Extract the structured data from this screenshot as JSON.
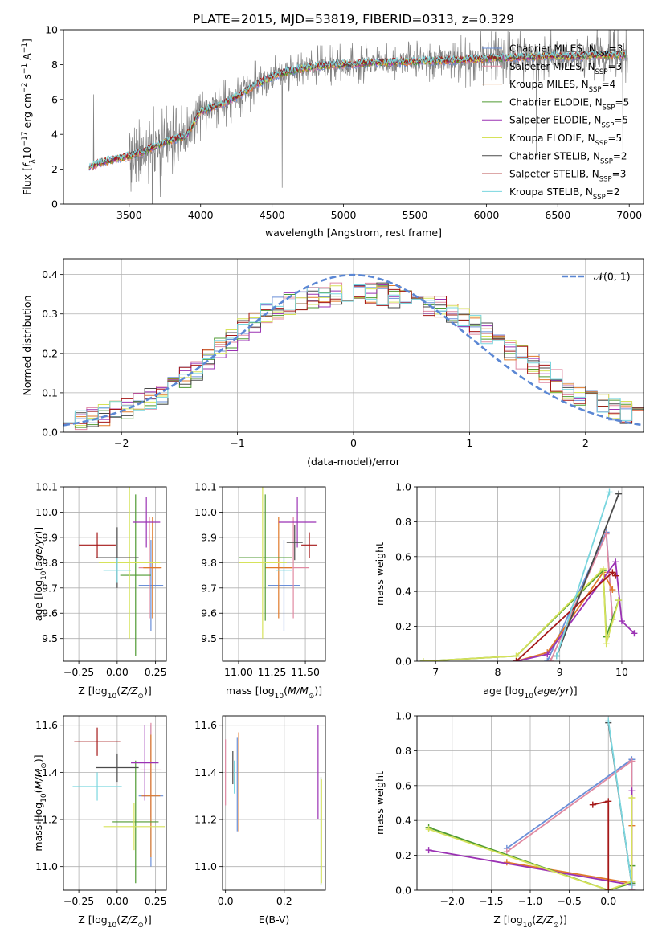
{
  "figure_title": "PLATE=2015, MJD=53819, FIBERID=0313, z=0.329",
  "colors": {
    "Chabrier MILES": "#6a8fd8",
    "Salpeter MILES": "#e08aa2",
    "Kroupa MILES": "#e07a2a",
    "Chabrier ELODIE": "#4f9a32",
    "Salpeter ELODIE": "#9b32b4",
    "Kroupa ELODIE": "#d6e25a",
    "Chabrier STELIB": "#4a4a4a",
    "Salpeter STELIB": "#a51818",
    "Kroupa STELIB": "#7ad6df",
    "gaussian": "#5b87d4",
    "gray_spectrum": "#808080"
  },
  "chart_data": [
    {
      "id": "spectrum",
      "type": "line",
      "title": "PLATE=2015, MJD=53819, FIBERID=0313, z=0.329",
      "xlabel": "wavelength [Angstrom, rest frame]",
      "ylabel": "Flux [f_λ 10⁻¹⁷ erg cm⁻² s⁻¹ A⁻¹]",
      "xlim": [
        3040,
        7100
      ],
      "ylim": [
        0,
        10
      ],
      "xticks": [
        3500,
        4000,
        4500,
        5000,
        5500,
        6000,
        6500,
        7000
      ],
      "yticks": [
        0,
        2,
        4,
        6,
        8,
        10
      ],
      "grid": false,
      "legend": "upper-right",
      "series": [
        {
          "name": "Chabrier MILES, N_SSP=3",
          "label": [
            "Chabrier MILES, N",
            "SSP",
            "=3"
          ],
          "key": "Chabrier MILES"
        },
        {
          "name": "Salpeter MILES, N_SSP=3",
          "label": [
            "Salpeter MILES, N",
            "SSP",
            "=3"
          ],
          "key": "Salpeter MILES"
        },
        {
          "name": "Kroupa MILES, N_SSP=4",
          "label": [
            "Kroupa MILES, N",
            "SSP",
            "=4"
          ],
          "key": "Kroupa MILES"
        },
        {
          "name": "Chabrier ELODIE, N_SSP=5",
          "label": [
            "Chabrier ELODIE, N",
            "SSP",
            "=5"
          ],
          "key": "Chabrier ELODIE"
        },
        {
          "name": "Salpeter ELODIE, N_SSP=5",
          "label": [
            "Salpeter ELODIE, N",
            "SSP",
            "=5"
          ],
          "key": "Salpeter ELODIE"
        },
        {
          "name": "Kroupa ELODIE, N_SSP=5",
          "label": [
            "Kroupa ELODIE, N",
            "SSP",
            "=5"
          ],
          "key": "Kroupa ELODIE"
        },
        {
          "name": "Chabrier STELIB, N_SSP=2",
          "label": [
            "Chabrier STELIB, N",
            "SSP",
            "=2"
          ],
          "key": "Chabrier STELIB"
        },
        {
          "name": "Salpeter STELIB, N_SSP=3",
          "label": [
            "Salpeter STELIB, N",
            "SSP",
            "=3"
          ],
          "key": "Salpeter STELIB"
        },
        {
          "name": "Kroupa STELIB, N_SSP=2",
          "label": [
            "Kroupa STELIB, N",
            "SSP",
            "=2"
          ],
          "key": "Kroupa STELIB"
        }
      ],
      "continuum": {
        "x": [
          3220,
          3300,
          3400,
          3500,
          3600,
          3700,
          3800,
          3900,
          3950,
          4000,
          4100,
          4200,
          4300,
          4400,
          4500,
          4600,
          4800,
          5000,
          5200,
          5400,
          5600,
          5800,
          6000,
          6200,
          6400,
          6600,
          6800,
          6990
        ],
        "y": [
          2.1,
          2.4,
          2.55,
          2.75,
          3.0,
          3.4,
          3.7,
          3.9,
          4.6,
          5.3,
          5.6,
          5.9,
          6.4,
          6.9,
          7.3,
          7.6,
          7.9,
          8.0,
          8.1,
          8.15,
          8.2,
          8.25,
          8.35,
          8.4,
          8.5,
          8.45,
          8.55,
          8.55
        ]
      }
    },
    {
      "id": "residuals",
      "type": "histogram",
      "xlabel": "(data-model)/error",
      "ylabel": "Normed distribution",
      "xlim": [
        -2.5,
        2.5
      ],
      "ylim": [
        0,
        0.44
      ],
      "xticks": [
        -2,
        -1,
        0,
        1,
        2
      ],
      "xtick_labels": [
        "−2",
        "−1",
        "0",
        "1",
        "2"
      ],
      "yticks": [
        0.0,
        0.1,
        0.2,
        0.3,
        0.4
      ],
      "grid": true,
      "legend": "upper-right",
      "gaussian": {
        "name": "𝒩(0, 1)",
        "mean": 0,
        "sigma": 1
      },
      "bin_edges": [
        -2.5,
        -2.4,
        -2.3,
        -2.2,
        -2.1,
        -2.0,
        -1.9,
        -1.8,
        -1.7,
        -1.6,
        -1.5,
        -1.4,
        -1.3,
        -1.2,
        -1.1,
        -1.0,
        -0.9,
        -0.8,
        -0.7,
        -0.6,
        -0.5,
        -0.4,
        -0.3,
        -0.2,
        -0.1,
        0.0,
        0.1,
        0.2,
        0.3,
        0.4,
        0.5,
        0.6,
        0.7,
        0.8,
        0.9,
        1.0,
        1.1,
        1.2,
        1.3,
        1.4,
        1.5,
        1.6,
        1.7,
        1.8,
        1.9,
        2.0,
        2.1,
        2.2,
        2.3,
        2.4,
        2.5
      ],
      "envelope": [
        0.03,
        0.035,
        0.04,
        0.045,
        0.05,
        0.06,
        0.07,
        0.085,
        0.1,
        0.12,
        0.14,
        0.16,
        0.185,
        0.21,
        0.235,
        0.26,
        0.28,
        0.3,
        0.315,
        0.325,
        0.335,
        0.34,
        0.345,
        0.35,
        0.35,
        0.35,
        0.35,
        0.35,
        0.345,
        0.34,
        0.335,
        0.325,
        0.315,
        0.3,
        0.285,
        0.27,
        0.25,
        0.23,
        0.21,
        0.19,
        0.17,
        0.15,
        0.13,
        0.11,
        0.095,
        0.08,
        0.07,
        0.06,
        0.05,
        0.04
      ]
    },
    {
      "id": "age-vs-Z",
      "type": "scatter",
      "xlabel": "Z [log₁₀(Z/Z☉)]",
      "ylabel": "age  [log₁₀(age/yr)]",
      "xlim": [
        -0.35,
        0.32
      ],
      "ylim": [
        9.41,
        10.1
      ],
      "xticks": [
        -0.25,
        0.0,
        0.25
      ],
      "xtick_labels": [
        "−0.25",
        "0.00",
        "0.25"
      ],
      "yticks": [
        9.5,
        9.6,
        9.7,
        9.8,
        9.9,
        10.0,
        10.1
      ],
      "grid": true,
      "points": [
        {
          "key": "Chabrier MILES",
          "x": 0.22,
          "y": 9.71,
          "xerr": 0.08,
          "yerr": 0.18
        },
        {
          "key": "Salpeter MILES",
          "x": 0.21,
          "y": 9.78,
          "xerr": 0.07,
          "yerr": 0.2
        },
        {
          "key": "Kroupa MILES",
          "x": 0.23,
          "y": 9.78,
          "xerr": 0.06,
          "yerr": 0.2
        },
        {
          "key": "Chabrier ELODIE",
          "x": 0.12,
          "y": 9.75,
          "xerr": 0.1,
          "yerr": 0.32
        },
        {
          "key": "Salpeter ELODIE",
          "x": 0.19,
          "y": 9.96,
          "xerr": 0.09,
          "yerr": 0.1
        },
        {
          "key": "Kroupa ELODIE",
          "x": 0.08,
          "y": 9.8,
          "xerr": 0.2,
          "yerr": 0.3
        },
        {
          "key": "Chabrier STELIB",
          "x": 0.0,
          "y": 9.82,
          "xerr": 0.14,
          "yerr": 0.12
        },
        {
          "key": "Salpeter STELIB",
          "x": -0.13,
          "y": 9.87,
          "xerr": 0.12,
          "yerr": 0.05
        },
        {
          "key": "Kroupa STELIB",
          "x": 0.0,
          "y": 9.77,
          "xerr": 0.09,
          "yerr": 0.05
        }
      ]
    },
    {
      "id": "age-vs-mass",
      "type": "scatter",
      "xlabel": "mass [log₁₀(M/M☉)]",
      "ylabel": "",
      "xlim": [
        10.88,
        11.65
      ],
      "ylim": [
        9.41,
        10.1
      ],
      "xticks": [
        11.0,
        11.25,
        11.5
      ],
      "xtick_labels": [
        "11.00",
        "11.25",
        "11.50"
      ],
      "yticks": [
        9.5,
        9.6,
        9.7,
        9.8,
        9.9,
        10.0,
        10.1
      ],
      "grid": true,
      "points": [
        {
          "key": "Chabrier MILES",
          "x": 11.34,
          "y": 9.71,
          "xerr": 0.12,
          "yerr": 0.18
        },
        {
          "key": "Salpeter MILES",
          "x": 11.41,
          "y": 9.78,
          "xerr": 0.12,
          "yerr": 0.2
        },
        {
          "key": "Kroupa MILES",
          "x": 11.3,
          "y": 9.78,
          "xerr": 0.1,
          "yerr": 0.2
        },
        {
          "key": "Chabrier ELODIE",
          "x": 11.2,
          "y": 9.82,
          "xerr": 0.2,
          "yerr": 0.25
        },
        {
          "key": "Salpeter ELODIE",
          "x": 11.44,
          "y": 9.96,
          "xerr": 0.14,
          "yerr": 0.1
        },
        {
          "key": "Kroupa ELODIE",
          "x": 11.18,
          "y": 9.8,
          "xerr": 0.18,
          "yerr": 0.3
        },
        {
          "key": "Chabrier STELIB",
          "x": 11.42,
          "y": 9.88,
          "xerr": 0.06,
          "yerr": 0.07
        },
        {
          "key": "Salpeter STELIB",
          "x": 11.53,
          "y": 9.87,
          "xerr": 0.06,
          "yerr": 0.05
        },
        {
          "key": "Kroupa STELIB",
          "x": 11.34,
          "y": 9.77,
          "xerr": 0.06,
          "yerr": 0.05
        }
      ]
    },
    {
      "id": "weight-vs-age",
      "type": "line",
      "xlabel": "age  [log₁₀(age/yr)]",
      "ylabel": "mass weight",
      "xlim": [
        6.7,
        10.35
      ],
      "ylim": [
        0,
        1
      ],
      "xticks": [
        7,
        8,
        9,
        10
      ],
      "yticks": [
        0.0,
        0.2,
        0.4,
        0.6,
        0.8,
        1.0
      ],
      "grid": true,
      "series": [
        {
          "key": "Chabrier MILES",
          "x": [
            8.8,
            9.75,
            9.85
          ],
          "y": [
            0.0,
            0.74,
            0.24
          ]
        },
        {
          "key": "Salpeter MILES",
          "x": [
            8.85,
            9.75,
            9.85
          ],
          "y": [
            0.0,
            0.73,
            0.24
          ]
        },
        {
          "key": "Kroupa MILES",
          "x": [
            8.3,
            8.8,
            9.7,
            9.85
          ],
          "y": [
            0.0,
            0.05,
            0.51,
            0.41
          ]
        },
        {
          "key": "Chabrier ELODIE",
          "x": [
            6.8,
            8.3,
            9.7,
            9.75,
            9.95
          ],
          "y": [
            0.0,
            0.03,
            0.52,
            0.14,
            0.35
          ]
        },
        {
          "key": "Salpeter ELODIE",
          "x": [
            8.3,
            8.8,
            9.9,
            10.0,
            10.2
          ],
          "y": [
            0.0,
            0.04,
            0.57,
            0.23,
            0.16
          ]
        },
        {
          "key": "Kroupa ELODIE",
          "x": [
            6.8,
            8.3,
            9.7,
            9.75,
            9.95
          ],
          "y": [
            0.0,
            0.03,
            0.53,
            0.1,
            0.35
          ]
        },
        {
          "key": "Chabrier STELIB",
          "x": [
            8.95,
            9.95
          ],
          "y": [
            0.03,
            0.96
          ]
        },
        {
          "key": "Salpeter STELIB",
          "x": [
            8.3,
            9.85,
            9.9
          ],
          "y": [
            0.0,
            0.51,
            0.49
          ]
        },
        {
          "key": "Kroupa STELIB",
          "x": [
            8.95,
            9.8
          ],
          "y": [
            0.03,
            0.97
          ]
        }
      ]
    },
    {
      "id": "mass-vs-Z",
      "type": "scatter",
      "xlabel": "Z [log₁₀(Z/Z☉)]",
      "ylabel": "mass [log₁₀(M/M☉)]",
      "xlim": [
        -0.35,
        0.32
      ],
      "ylim": [
        10.9,
        11.64
      ],
      "xticks": [
        -0.25,
        0.0,
        0.25
      ],
      "xtick_labels": [
        "−0.25",
        "0.00",
        "0.25"
      ],
      "yticks": [
        11.0,
        11.2,
        11.4,
        11.6
      ],
      "grid": true,
      "points": [
        {
          "key": "Chabrier MILES",
          "x": 0.22,
          "y": 11.3,
          "xerr": 0.08,
          "yerr": 0.3
        },
        {
          "key": "Salpeter MILES",
          "x": 0.22,
          "y": 11.41,
          "xerr": 0.07,
          "yerr": 0.2
        },
        {
          "key": "Kroupa MILES",
          "x": 0.22,
          "y": 11.3,
          "xerr": 0.06,
          "yerr": 0.26
        },
        {
          "key": "Chabrier ELODIE",
          "x": 0.12,
          "y": 11.19,
          "xerr": 0.15,
          "yerr": 0.26
        },
        {
          "key": "Salpeter ELODIE",
          "x": 0.18,
          "y": 11.44,
          "xerr": 0.09,
          "yerr": 0.16
        },
        {
          "key": "Kroupa ELODIE",
          "x": 0.11,
          "y": 11.17,
          "xerr": 0.2,
          "yerr": 0.1
        },
        {
          "key": "Chabrier STELIB",
          "x": 0.0,
          "y": 11.42,
          "xerr": 0.14,
          "yerr": 0.06
        },
        {
          "key": "Salpeter STELIB",
          "x": -0.13,
          "y": 11.53,
          "xerr": 0.15,
          "yerr": 0.06
        },
        {
          "key": "Kroupa STELIB",
          "x": -0.13,
          "y": 11.34,
          "xerr": 0.16,
          "yerr": 0.06
        }
      ]
    },
    {
      "id": "mass-vs-EBV",
      "type": "scatter",
      "xlabel": "E(B-V)",
      "ylabel": "",
      "xlim": [
        -0.01,
        0.34
      ],
      "ylim": [
        10.9,
        11.64
      ],
      "xticks": [
        0.0,
        0.2
      ],
      "xtick_labels": [
        "0.0",
        "0.2"
      ],
      "yticks": [
        11.0,
        11.2,
        11.4,
        11.6
      ],
      "grid": true,
      "points": [
        {
          "key": "Salpeter MILES",
          "x": 0.0,
          "y": 11.4,
          "xerr": 0.0,
          "yerr": 0.14
        },
        {
          "key": "Kroupa MILES",
          "x": 0.045,
          "y": 11.36,
          "xerr": 0.0,
          "yerr": 0.21
        },
        {
          "key": "Chabrier MILES",
          "x": 0.04,
          "y": 11.35,
          "xerr": 0.0,
          "yerr": 0.2
        },
        {
          "key": "Chabrier STELIB",
          "x": 0.025,
          "y": 11.42,
          "xerr": 0.0,
          "yerr": 0.07
        },
        {
          "key": "Kroupa STELIB",
          "x": 0.03,
          "y": 11.38,
          "xerr": 0.0,
          "yerr": 0.07
        },
        {
          "key": "Salpeter ELODIE",
          "x": 0.315,
          "y": 11.4,
          "xerr": 0.0,
          "yerr": 0.2
        },
        {
          "key": "Chabrier ELODIE",
          "x": 0.325,
          "y": 11.15,
          "xerr": 0.0,
          "yerr": 0.23
        },
        {
          "key": "Kroupa ELODIE",
          "x": 0.327,
          "y": 11.15,
          "xerr": 0.0,
          "yerr": 0.22
        }
      ]
    },
    {
      "id": "weight-vs-Z",
      "type": "line",
      "xlabel": "Z [log₁₀(Z/Z☉)]",
      "ylabel": "mass weight",
      "xlim": [
        -2.45,
        0.45
      ],
      "ylim": [
        0,
        1
      ],
      "xticks": [
        -2.0,
        -1.5,
        -1.0,
        -0.5,
        0.0
      ],
      "xtick_labels": [
        "−2.0",
        "−1.5",
        "−1.0",
        "−0.5",
        "0.0"
      ],
      "yticks": [
        0.0,
        0.2,
        0.4,
        0.6,
        0.8,
        1.0
      ],
      "grid": true,
      "series": [
        {
          "key": "Chabrier MILES",
          "x": [
            -1.3,
            0.3,
            0.3
          ],
          "y": [
            0.24,
            0.75,
            0.0
          ]
        },
        {
          "key": "Salpeter MILES",
          "x": [
            -1.3,
            0.3,
            0.3
          ],
          "y": [
            0.22,
            0.74,
            0.0
          ]
        },
        {
          "key": "Kroupa MILES",
          "x": [
            -1.3,
            0.3,
            0.3
          ],
          "y": [
            0.16,
            0.04,
            0.37
          ]
        },
        {
          "key": "Chabrier ELODIE",
          "x": [
            -2.3,
            0.0,
            0.3,
            0.3
          ],
          "y": [
            0.36,
            0.0,
            0.04,
            0.14
          ]
        },
        {
          "key": "Salpeter ELODIE",
          "x": [
            -2.3,
            0.3,
            0.3
          ],
          "y": [
            0.23,
            0.03,
            0.57
          ]
        },
        {
          "key": "Kroupa ELODIE",
          "x": [
            -2.3,
            0.0,
            0.3,
            0.3
          ],
          "y": [
            0.35,
            0.0,
            0.05,
            0.53
          ]
        },
        {
          "key": "Chabrier STELIB",
          "x": [
            0.0,
            0.3
          ],
          "y": [
            0.96,
            0.03
          ]
        },
        {
          "key": "Salpeter STELIB",
          "x": [
            -0.2,
            0.0,
            0.0
          ],
          "y": [
            0.49,
            0.51,
            0.0
          ]
        },
        {
          "key": "Kroupa STELIB",
          "x": [
            0.0,
            0.3
          ],
          "y": [
            0.97,
            0.03
          ]
        }
      ]
    }
  ]
}
